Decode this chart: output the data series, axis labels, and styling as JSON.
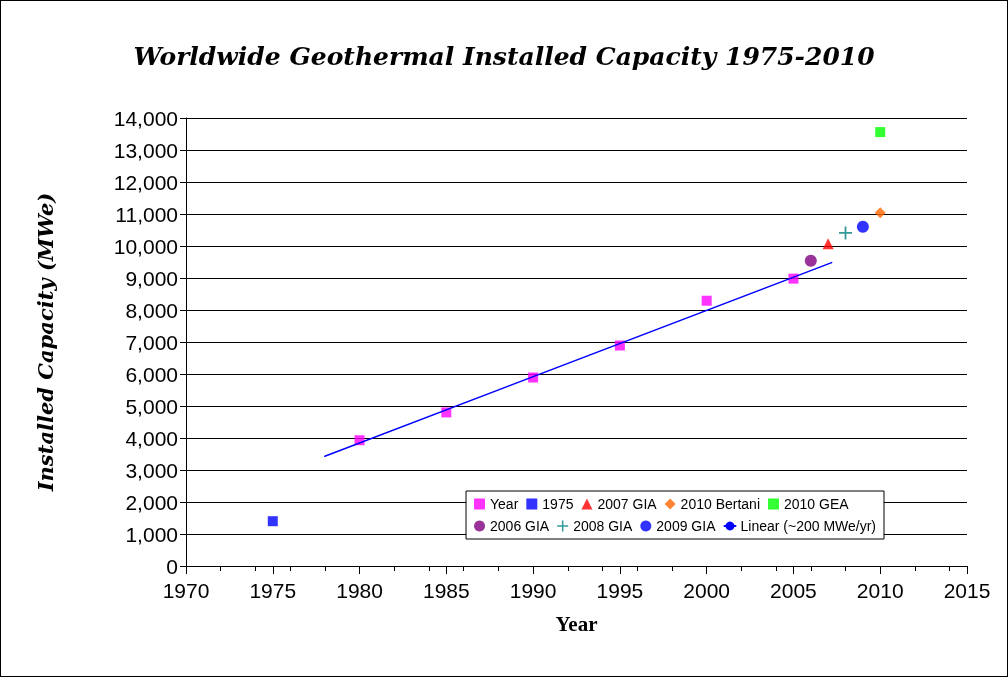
{
  "chart_data": {
    "type": "scatter",
    "title": "Worldwide Geothermal Installed Capacity 1975-2010",
    "xlabel": "Year",
    "ylabel": "Installed Capacity (MWe)",
    "xlim": [
      1970,
      2015
    ],
    "xticks": [
      1970,
      1975,
      1980,
      1985,
      1990,
      1995,
      2000,
      2005,
      2010,
      2015
    ],
    "ylim": [
      0,
      14000
    ],
    "yticks": [
      0,
      {
        "value": 1000,
        "label": "1,000"
      },
      {
        "value": 2000,
        "label": "2,000"
      },
      {
        "value": 3000,
        "label": "3,000"
      },
      {
        "value": 4000,
        "label": "4,000"
      },
      {
        "value": 5000,
        "label": "5,000"
      },
      {
        "value": 6000,
        "label": "6,000"
      },
      {
        "value": 7000,
        "label": "7,000"
      },
      {
        "value": 8000,
        "label": "8,000"
      },
      {
        "value": 9000,
        "label": "9,000"
      },
      {
        "value": 10000,
        "label": "10,000"
      },
      {
        "value": 11000,
        "label": "11,000"
      },
      {
        "value": 12000,
        "label": "12,000"
      },
      {
        "value": 13000,
        "label": "13,000"
      },
      {
        "value": 14000,
        "label": "14,000"
      }
    ],
    "grid": "y",
    "legend": "bottom right",
    "series": [
      {
        "name": "Year",
        "color": "#ff00ff",
        "marker": "square",
        "x": [
          1980,
          1985,
          1990,
          1995,
          2000,
          2005
        ],
        "values": [
          3930,
          4800,
          5890,
          6890,
          8290,
          8980
        ]
      },
      {
        "name": "1975",
        "color": "#0000ff",
        "marker": "square",
        "x": [
          1975
        ],
        "values": [
          1400
        ]
      },
      {
        "name": "2007 GIA",
        "color": "#ff0000",
        "marker": "triangle",
        "x": [
          2007
        ],
        "values": [
          10070
        ]
      },
      {
        "name": "2010 Bertani",
        "color": "#ff6600",
        "marker": "diamond",
        "x": [
          2010
        ],
        "values": [
          11040
        ]
      },
      {
        "name": "2010 GEA",
        "color": "#00ff00",
        "marker": "square",
        "x": [
          2010
        ],
        "values": [
          13560
        ]
      },
      {
        "name": "2006 GIA",
        "color": "#800080",
        "marker": "circle",
        "x": [
          2006
        ],
        "values": [
          9540
        ]
      },
      {
        "name": "2008 GIA",
        "color": "#008080",
        "marker": "cross",
        "x": [
          2008
        ],
        "values": [
          10410
        ]
      },
      {
        "name": "2009 GIA",
        "color": "#0000ff",
        "marker": "circle",
        "x": [
          2009
        ],
        "values": [
          10600
        ]
      },
      {
        "name": "Linear (~200 MWe/yr)",
        "type": "line",
        "color": "#0000ff",
        "marker": "none",
        "line_style": "solid",
        "x": [
          1978,
          2007.2
        ],
        "values": [
          3430,
          9480
        ]
      }
    ]
  }
}
